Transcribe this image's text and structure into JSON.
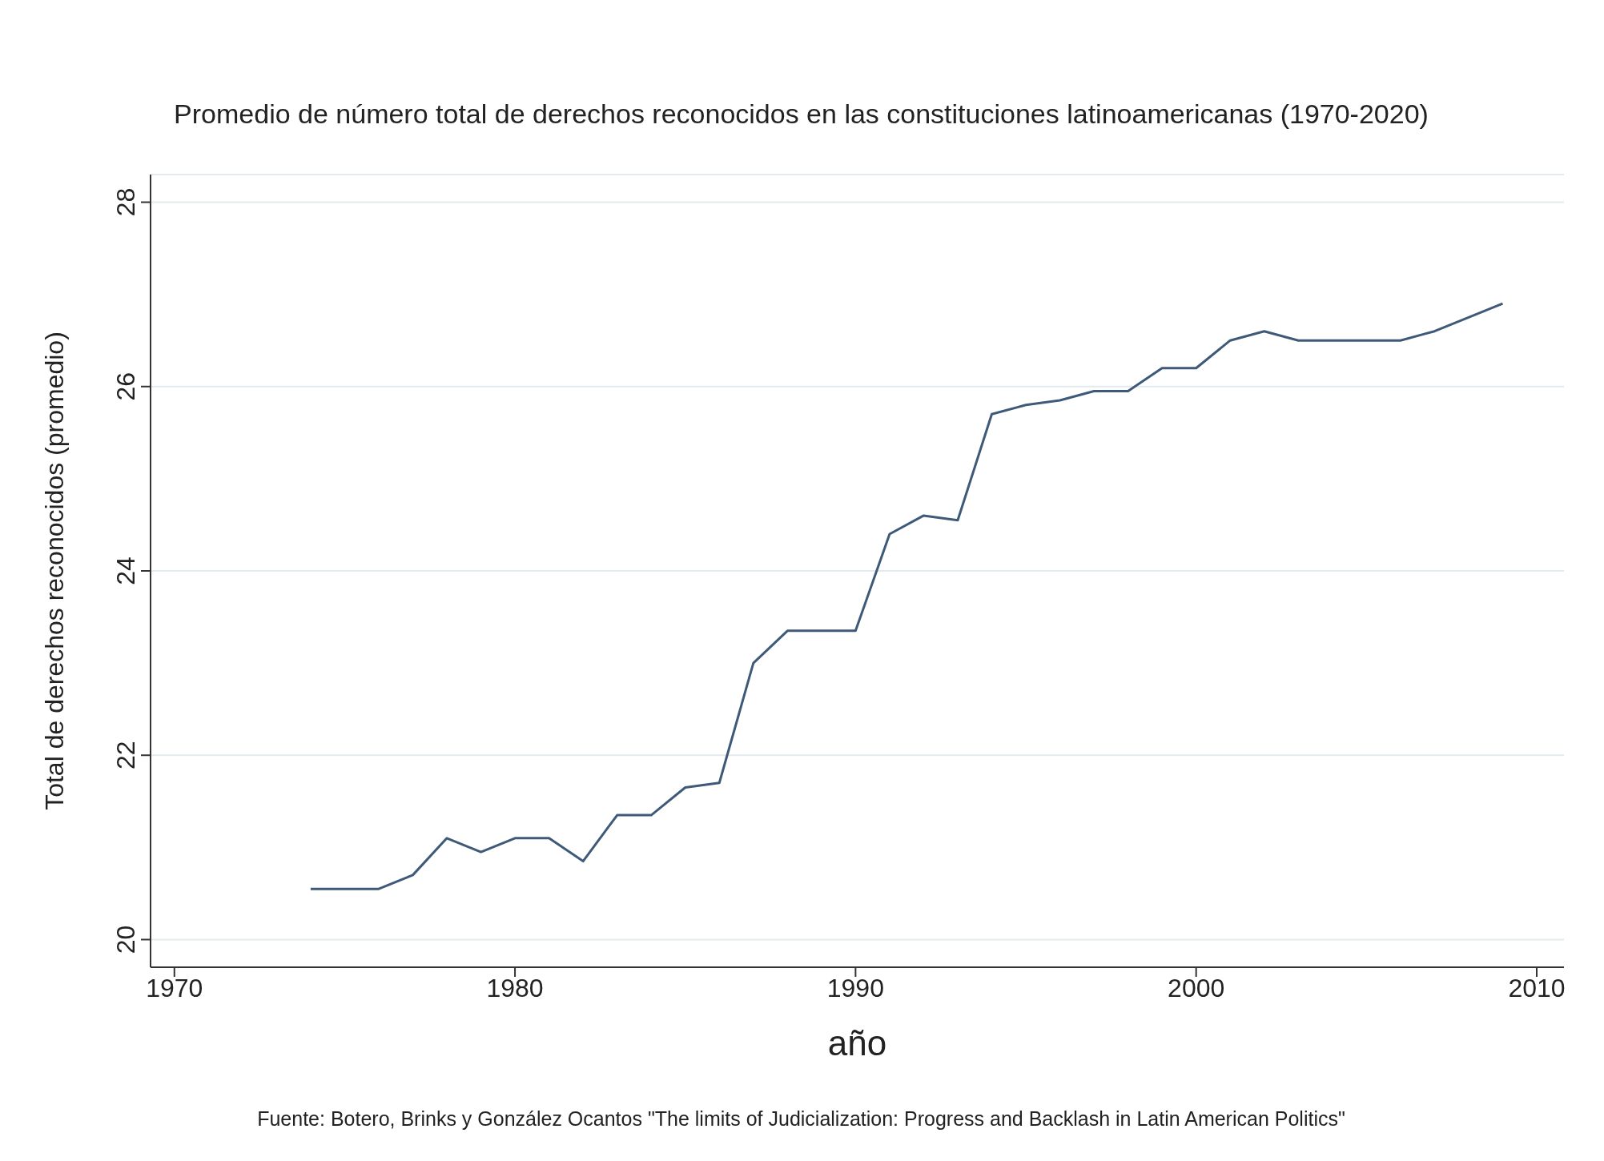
{
  "chart_data": {
    "type": "line",
    "title": "Promedio de número total de derechos reconocidos en las constituciones latinoamericanas (1970-2020)",
    "xlabel": "año",
    "ylabel": "Total de derechos reconocidos (promedio)",
    "annotations": [
      "Fuente: Botero, Brinks y González Ocantos \"The limits of Judicialization: Progress and Backlash in Latin American Politics\""
    ],
    "x": [
      1974,
      1975,
      1976,
      1977,
      1978,
      1979,
      1980,
      1981,
      1982,
      1983,
      1984,
      1985,
      1986,
      1987,
      1988,
      1989,
      1990,
      1991,
      1992,
      1993,
      1994,
      1995,
      1996,
      1997,
      1998,
      1999,
      2000,
      2001,
      2002,
      2003,
      2004,
      2005,
      2006,
      2007,
      2008,
      2009
    ],
    "series": [
      {
        "color": "#3e5a78",
        "values": [
          20.55,
          20.55,
          20.55,
          20.7,
          21.1,
          20.95,
          21.1,
          21.1,
          20.85,
          21.35,
          21.35,
          21.65,
          21.7,
          23.0,
          23.35,
          23.35,
          23.35,
          24.4,
          24.6,
          24.55,
          25.7,
          25.8,
          25.85,
          25.95,
          25.95,
          26.2,
          26.2,
          26.5,
          26.6,
          26.5,
          26.5,
          26.5,
          26.5,
          26.6,
          26.75,
          26.9
        ]
      }
    ],
    "xlim": [
      1969.3,
      2010.8
    ],
    "xticks": [
      1970,
      1980,
      1990,
      2000,
      2010
    ],
    "ylim": [
      19.7,
      28.3
    ],
    "yticks": [
      20,
      22,
      24,
      26,
      28
    ],
    "grid": "y",
    "marker": "none",
    "line_style": "solid"
  }
}
